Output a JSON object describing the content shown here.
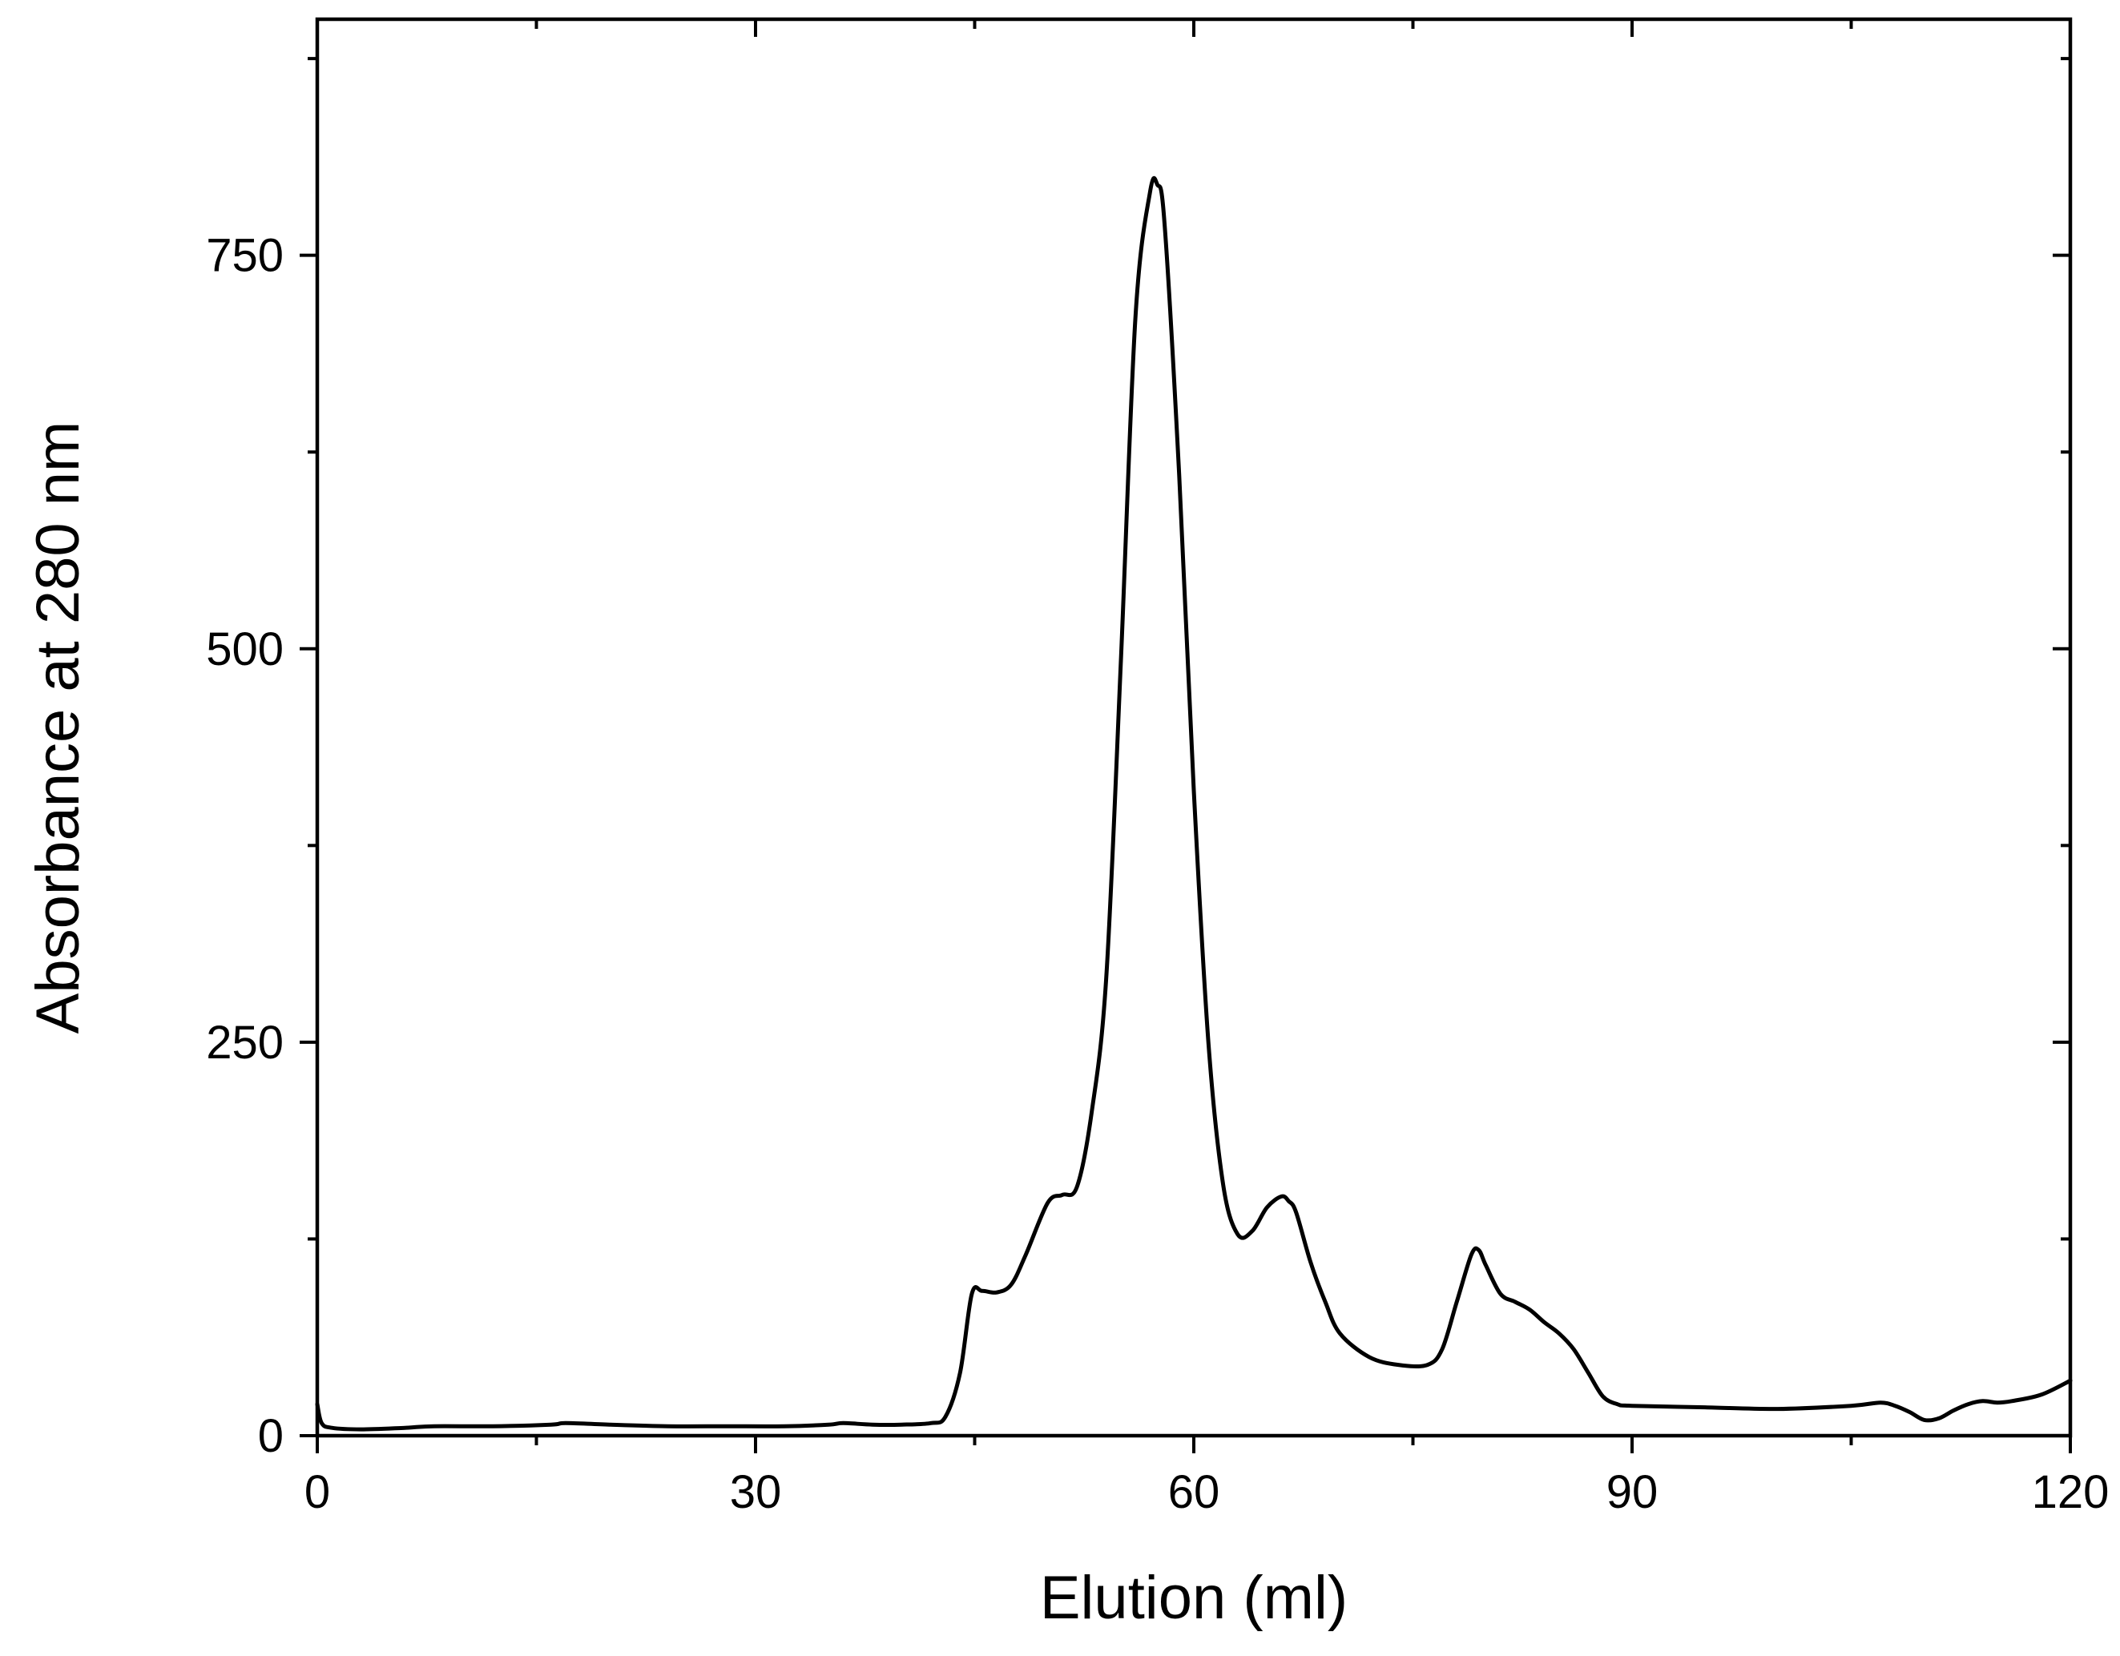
{
  "chart_data": {
    "type": "line",
    "xlabel": "Elution (ml)",
    "ylabel": "Absorbance at 280 nm",
    "xlim": [
      0,
      120
    ],
    "ylim": [
      0,
      900
    ],
    "x_ticks": [
      0,
      30,
      60,
      90,
      120
    ],
    "x_minor_ticks": [
      15,
      45,
      75,
      105
    ],
    "y_ticks": [
      0,
      250,
      500,
      750
    ],
    "y_minor_ticks": [
      125,
      375,
      625,
      875
    ],
    "grid": false,
    "legend": "none",
    "line_color": "#000000",
    "series": [
      {
        "x": [
          0,
          0.3,
          1,
          3,
          6,
          8,
          12,
          16,
          17,
          20,
          24,
          28,
          32,
          35,
          36,
          38,
          40,
          42,
          43,
          44,
          44.8,
          45.5,
          46.5,
          47.5,
          48.5,
          50,
          51,
          52,
          53,
          54,
          55,
          56,
          57,
          57.5,
          58,
          59,
          60,
          61,
          62,
          63,
          64,
          65,
          66,
          66.5,
          67,
          68,
          69,
          70,
          72,
          74,
          76,
          77,
          78,
          79,
          79.5,
          80,
          81,
          82,
          83,
          84,
          85,
          86,
          87,
          88,
          89,
          90,
          95,
          100,
          105,
          107,
          108,
          109,
          110,
          111,
          112,
          113,
          114,
          115,
          116,
          118,
          120
        ],
        "y": [
          20,
          8,
          5,
          4,
          5,
          6,
          6,
          7,
          8,
          7,
          6,
          6,
          6,
          7,
          8,
          7,
          7,
          8,
          12,
          40,
          90,
          92,
          91,
          96,
          115,
          148,
          153,
          158,
          205,
          290,
          490,
          710,
          790,
          795,
          770,
          610,
          410,
          250,
          160,
          128,
          130,
          145,
          152,
          149,
          142,
          110,
          85,
          65,
          50,
          45,
          45,
          55,
          85,
          115,
          118,
          108,
          90,
          85,
          80,
          72,
          65,
          55,
          40,
          25,
          20,
          19,
          18,
          17,
          19,
          21,
          19,
          15,
          10,
          11,
          16,
          20,
          22,
          21,
          22,
          26,
          35
        ]
      }
    ]
  }
}
